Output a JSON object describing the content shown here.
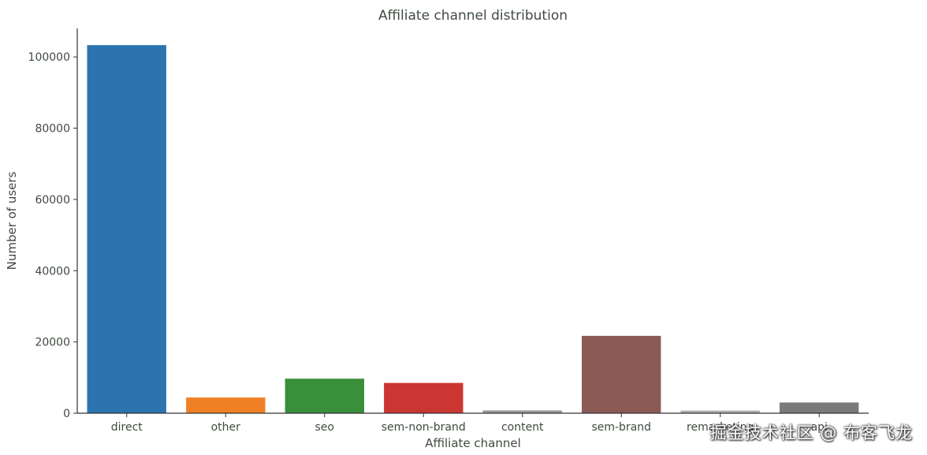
{
  "chart_data": {
    "type": "bar",
    "title": "Affiliate channel distribution",
    "xlabel": "Affiliate channel",
    "ylabel": "Number of users",
    "categories": [
      "direct",
      "other",
      "seo",
      "sem-non-brand",
      "content",
      "sem-brand",
      "remarketing",
      "api"
    ],
    "values": [
      103300,
      4400,
      9700,
      8500,
      800,
      21700,
      750,
      3000
    ],
    "colors": [
      "#2c74b0",
      "#ef8025",
      "#3a8f3a",
      "#cb3532",
      "#9a9a9a",
      "#8c5a55",
      "#b0b0b0",
      "#7a7a7a"
    ],
    "ylim": [
      0,
      108000
    ],
    "yticks": [
      0,
      20000,
      40000,
      60000,
      80000,
      100000
    ],
    "grid": false,
    "legend": "none"
  },
  "watermark": "掘金技术社区 @ 布客飞龙"
}
